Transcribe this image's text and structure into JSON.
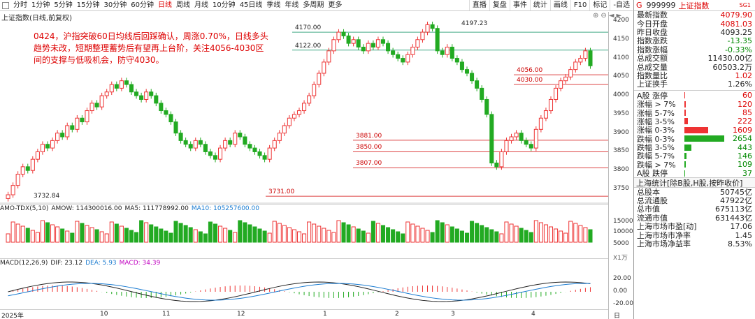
{
  "toolbar": {
    "items": [
      "分时",
      "1分钟",
      "5分钟",
      "15分钟",
      "30分钟",
      "60分钟",
      "日线",
      "周线",
      "月线",
      "10分钟",
      "45日线",
      "季线",
      "年线",
      "多周期",
      "更多"
    ],
    "active_index": 6,
    "right_buttons": [
      "直播",
      "复盘",
      "事件",
      "统计",
      "画线",
      "F10",
      "标记",
      "-自选"
    ]
  },
  "chart": {
    "title": "上证指数(日线,前复权)",
    "annotation": "0424，沪指突破60日均线后回踩确认，周涨0.70%，日线多头趋势未改，短期整理蓄势后有望再上台阶，关注4056-4030区间的支撑与低吸机会，防守4030。",
    "high_label": "4197.23",
    "low_label": "3732.84",
    "levels": [
      "4170.00",
      "4122.00",
      "4056.00",
      "4030.00",
      "3881.00",
      "3850.00",
      "3807.00",
      "3731.00"
    ],
    "icons": "⊕⊖◄►",
    "price_ticks": [
      "4200",
      "4150",
      "4100",
      "4050",
      "4000",
      "3950",
      "3900",
      "3850",
      "3800",
      "3750"
    ]
  },
  "volume": {
    "header_items": [
      {
        "text": "AMO-TDX(5,10)",
        "color": "#222"
      },
      {
        "text": "AMOW: 114300016.00",
        "color": "#222"
      },
      {
        "text": "MA5: 111778992.00",
        "color": "#222"
      },
      {
        "text": "MA10: 105257600.00",
        "color": "#1a7bd0"
      }
    ],
    "ticks": [
      "15000",
      "10000",
      "5000"
    ],
    "unit": "X1万"
  },
  "macd": {
    "header_items": [
      {
        "text": "MACD(12,26,9)",
        "color": "#222"
      },
      {
        "text": "DIF: 23.12",
        "color": "#222"
      },
      {
        "text": "DEA: 5.93",
        "color": "#1a7bd0"
      },
      {
        "text": "MACD: 34.39",
        "color": "#c000c0"
      }
    ],
    "ticks": [
      "20.00",
      "0.00",
      "-20.00"
    ]
  },
  "dates": {
    "labels": [
      "2025年",
      "10",
      "11",
      "12",
      "1",
      "2",
      "3",
      "4"
    ],
    "period": "日线"
  },
  "panel": {
    "g": "G",
    "code": "999999",
    "name": "上证指数",
    "tag": "SG1",
    "quote": [
      {
        "label": "最新指数",
        "value": "4079.90",
        "color": "red"
      },
      {
        "label": "今日开盘",
        "value": "4081.03",
        "color": "red"
      },
      {
        "label": "昨日收盘",
        "value": "4093.25",
        "color": "blk"
      },
      {
        "label": "指数涨跌",
        "value": "-13.35",
        "color": "green"
      },
      {
        "label": "指数涨幅",
        "value": "-0.33%",
        "color": "green"
      },
      {
        "label": "总成交额",
        "value": "11430.00亿",
        "color": "blk"
      },
      {
        "label": "总成交量",
        "value": "60503.2万",
        "color": "blk"
      },
      {
        "label": "指数量比",
        "value": "1.02",
        "color": "red"
      },
      {
        "label": "上证换手",
        "value": "1.26%",
        "color": "blk"
      }
    ],
    "breadth": [
      {
        "label": "A股 涨停",
        "value": "60",
        "pct": 0.02,
        "color": "#e33",
        "vcolor": "red"
      },
      {
        "label": "涨幅 > 7%",
        "value": "120",
        "pct": 0.04,
        "color": "#e33",
        "vcolor": "red"
      },
      {
        "label": "涨幅 5-7%",
        "value": "85",
        "pct": 0.03,
        "color": "#e33",
        "vcolor": "red"
      },
      {
        "label": "涨幅 3-5%",
        "value": "222",
        "pct": 0.08,
        "color": "#e33",
        "vcolor": "red"
      },
      {
        "label": "涨幅 0-3%",
        "value": "1609",
        "pct": 0.6,
        "color": "#e33",
        "vcolor": "red"
      },
      {
        "label": "跌幅 0-3%",
        "value": "2654",
        "pct": 1.0,
        "color": "#2a2",
        "vcolor": "green"
      },
      {
        "label": "跌幅 3-5%",
        "value": "443",
        "pct": 0.17,
        "color": "#2a2",
        "vcolor": "green"
      },
      {
        "label": "跌幅 5-7%",
        "value": "146",
        "pct": 0.05,
        "color": "#2a2",
        "vcolor": "green"
      },
      {
        "label": "跌幅 > 7%",
        "value": "109",
        "pct": 0.04,
        "color": "#2a2",
        "vcolor": "green"
      },
      {
        "label": "A股 跌停",
        "value": "37",
        "pct": 0.01,
        "color": "#2a2",
        "vcolor": "green"
      }
    ],
    "sh_header": "上海统计[除B股,H股,按昨收价]",
    "stats": [
      {
        "label": "总股本",
        "value": "50745亿"
      },
      {
        "label": "总流通股",
        "value": "47922亿"
      },
      {
        "label": "总市值",
        "value": "675113亿"
      },
      {
        "label": "流通市值",
        "value": "631443亿"
      },
      {
        "label": "上海市场市盈[动]",
        "value": "17.06"
      },
      {
        "label": "上海市场市净率",
        "value": "1.45"
      },
      {
        "label": "上海市场净益率",
        "value": "8.53%"
      }
    ]
  }
}
